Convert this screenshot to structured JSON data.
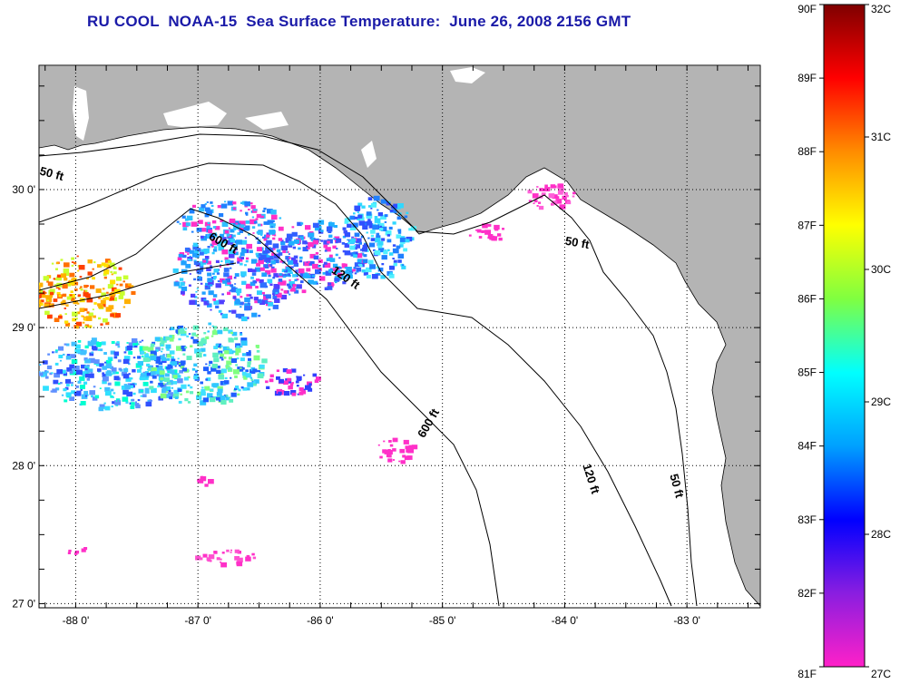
{
  "title": "RU COOL  NOAA-15  Sea Surface Temperature:  June 26, 2008 2156 GMT",
  "map": {
    "lon_range": [
      -88.3,
      -82.4
    ],
    "lat_range": [
      26.97,
      30.9
    ],
    "lon_ticks": [
      {
        "value": -88,
        "label": "-88 0'"
      },
      {
        "value": -87,
        "label": "-87 0'"
      },
      {
        "value": -86,
        "label": "-86 0'"
      },
      {
        "value": -85,
        "label": "-85 0'"
      },
      {
        "value": -84,
        "label": "-84 0'"
      },
      {
        "value": -83,
        "label": "-83 0'"
      }
    ],
    "lat_ticks": [
      {
        "value": 27,
        "label": "27 0'"
      },
      {
        "value": 28,
        "label": "28 0'"
      },
      {
        "value": 29,
        "label": "29 0'"
      },
      {
        "value": 30,
        "label": "30 0'"
      }
    ],
    "colors": {
      "land": "#b4b4b4",
      "ocean": "#ffffff",
      "grid": "#000000"
    },
    "contour_labels": [
      {
        "text": "50 ft",
        "lon": -88.2,
        "lat": 30.1,
        "angle": 15
      },
      {
        "text": "600 ft",
        "lon": -86.8,
        "lat": 29.6,
        "angle": 30
      },
      {
        "text": "120 ft",
        "lon": -85.8,
        "lat": 29.35,
        "angle": 35
      },
      {
        "text": "50 ft",
        "lon": -83.9,
        "lat": 29.6,
        "angle": 10
      },
      {
        "text": "600 ft",
        "lon": -85.1,
        "lat": 28.3,
        "angle": -60
      },
      {
        "text": "120 ft",
        "lon": -83.8,
        "lat": 27.9,
        "angle": 72
      },
      {
        "text": "50 ft",
        "lon": -83.1,
        "lat": 27.85,
        "angle": 75
      }
    ]
  },
  "colorbar": {
    "f_labels": [
      "90F",
      "89F",
      "88F",
      "87F",
      "86F",
      "85F",
      "84F",
      "83F",
      "82F",
      "81F"
    ],
    "c_labels": [
      "32C",
      "31C",
      "30C",
      "29C",
      "28C",
      "27C"
    ],
    "f_range": [
      81,
      90
    ],
    "c_range": [
      27,
      32
    ],
    "gradient": [
      "#ff20c8",
      "#8a1ee0",
      "#0000ff",
      "#00a0ff",
      "#00ffff",
      "#80ff40",
      "#ffff00",
      "#ff8c00",
      "#ff0000",
      "#7f0000"
    ]
  }
}
